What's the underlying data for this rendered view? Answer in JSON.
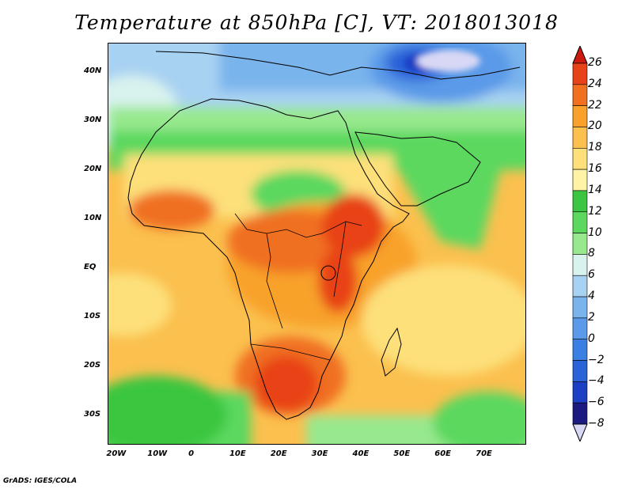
{
  "title": "Temperature at 850hPa [C], VT: 2018013018",
  "credit": "GrADS: IGES/COLA",
  "map": {
    "lon_range": [
      -22,
      80
    ],
    "lat_range": [
      -36,
      46
    ],
    "lon_ticks": [
      {
        "value": -20,
        "label": "20W"
      },
      {
        "value": -10,
        "label": "10W"
      },
      {
        "value": 0,
        "label": "0"
      },
      {
        "value": 10,
        "label": "10E"
      },
      {
        "value": 20,
        "label": "20E"
      },
      {
        "value": 30,
        "label": "30E"
      },
      {
        "value": 40,
        "label": "40E"
      },
      {
        "value": 50,
        "label": "50E"
      },
      {
        "value": 60,
        "label": "60E"
      },
      {
        "value": 70,
        "label": "70E"
      }
    ],
    "lat_ticks": [
      {
        "value": 40,
        "label": "40N"
      },
      {
        "value": 30,
        "label": "30N"
      },
      {
        "value": 20,
        "label": "20N"
      },
      {
        "value": 10,
        "label": "10N"
      },
      {
        "value": 0,
        "label": "EQ"
      },
      {
        "value": -10,
        "label": "10S"
      },
      {
        "value": -20,
        "label": "20S"
      },
      {
        "value": -30,
        "label": "30S"
      }
    ],
    "coastline_color": "#000000"
  },
  "colorbar": {
    "levels": [
      -8,
      -6,
      -4,
      -2,
      0,
      2,
      4,
      6,
      8,
      10,
      12,
      14,
      16,
      18,
      20,
      22,
      24,
      26
    ],
    "colors": [
      "#d8d8f5",
      "#1a1a80",
      "#1c3fc4",
      "#2a62d8",
      "#3a80e2",
      "#5a9ae8",
      "#7ab4ec",
      "#a8d2f2",
      "#d8f2ee",
      "#98e88e",
      "#5cd85e",
      "#3ac640",
      "#fff3a6",
      "#fde07a",
      "#fbc04e",
      "#f8a22c",
      "#f07020",
      "#e84218",
      "#cc1a10"
    ]
  }
}
